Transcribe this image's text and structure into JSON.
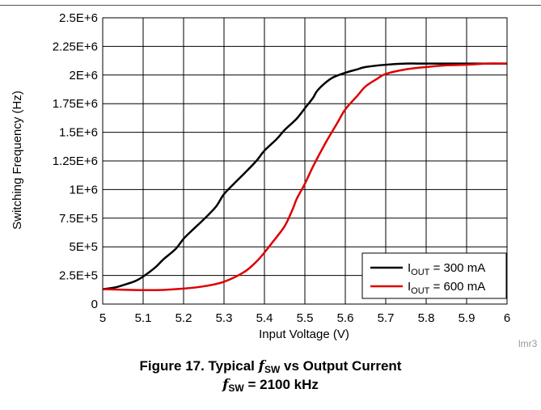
{
  "chart_data": {
    "type": "line",
    "title": "",
    "xlabel": "Input Voltage (V)",
    "ylabel": "Switching Frequency (Hz)",
    "xlim": [
      5,
      6
    ],
    "ylim": [
      0,
      2500000
    ],
    "xticks": [
      5,
      5.1,
      5.2,
      5.3,
      5.4,
      5.5,
      5.6,
      5.7,
      5.8,
      5.9,
      6
    ],
    "xtick_labels": [
      "5",
      "5.1",
      "5.2",
      "5.3",
      "5.4",
      "5.5",
      "5.6",
      "5.7",
      "5.8",
      "5.9",
      "6"
    ],
    "yticks": [
      0,
      250000,
      500000,
      750000,
      1000000,
      1250000,
      1500000,
      1750000,
      2000000,
      2250000,
      2500000
    ],
    "ytick_labels": [
      "0",
      "2.5E+5",
      "5E+5",
      "7.5E+5",
      "1E+6",
      "1.25E+6",
      "1.5E+6",
      "1.75E+6",
      "2E+6",
      "2.25E+6",
      "2.5E+6"
    ],
    "grid": true,
    "legend_position": "bottom-right",
    "series": [
      {
        "name_main": "I",
        "name_sub": "OUT",
        "name_rest": " = 300 mA",
        "color": "#000000",
        "x": [
          5.0,
          5.03,
          5.05,
          5.08,
          5.1,
          5.13,
          5.15,
          5.18,
          5.2,
          5.22,
          5.25,
          5.28,
          5.3,
          5.33,
          5.35,
          5.38,
          5.4,
          5.43,
          5.45,
          5.48,
          5.5,
          5.52,
          5.53,
          5.55,
          5.57,
          5.6,
          5.63,
          5.65,
          5.7,
          5.75,
          5.8,
          5.9,
          6.0
        ],
        "y": [
          130000,
          145000,
          165000,
          200000,
          240000,
          320000,
          390000,
          480000,
          570000,
          640000,
          740000,
          850000,
          960000,
          1070000,
          1140000,
          1250000,
          1340000,
          1440000,
          1520000,
          1620000,
          1710000,
          1800000,
          1860000,
          1930000,
          1980000,
          2020000,
          2050000,
          2070000,
          2090000,
          2100000,
          2100000,
          2100000,
          2100000
        ]
      },
      {
        "name_main": "I",
        "name_sub": "OUT",
        "name_rest": " = 600 mA",
        "color": "#dd0000",
        "x": [
          5.0,
          5.05,
          5.1,
          5.15,
          5.2,
          5.25,
          5.3,
          5.35,
          5.38,
          5.4,
          5.42,
          5.45,
          5.47,
          5.48,
          5.5,
          5.52,
          5.55,
          5.58,
          5.6,
          5.63,
          5.65,
          5.68,
          5.7,
          5.75,
          5.8,
          5.85,
          5.9,
          5.95,
          6.0
        ],
        "y": [
          130000,
          125000,
          122000,
          124000,
          135000,
          155000,
          195000,
          280000,
          370000,
          450000,
          540000,
          680000,
          830000,
          920000,
          1050000,
          1200000,
          1400000,
          1580000,
          1700000,
          1820000,
          1900000,
          1970000,
          2010000,
          2050000,
          2070000,
          2085000,
          2090000,
          2100000,
          2100000
        ]
      }
    ]
  },
  "caption": {
    "line1_prefix": "Figure 17. Typical ",
    "f_symbol": "f",
    "sw_sub": "SW",
    "line1_suffix": " vs Output Current",
    "line2_suffix": " = 2100 kHz"
  },
  "figure_id": "lmr3"
}
